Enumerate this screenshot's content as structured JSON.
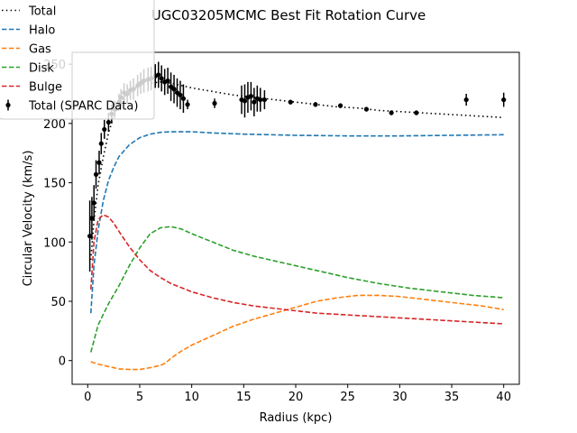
{
  "chart_data": {
    "type": "line",
    "title": "UGC03205MCMC Best Fit Rotation Curve",
    "xlabel": "Radius (kpc)",
    "ylabel": "Circular Velocity (km/s)",
    "xlim": [
      -1.5,
      41.5
    ],
    "ylim": [
      -20,
      260
    ],
    "xticks": [
      0,
      5,
      10,
      15,
      20,
      25,
      30,
      35,
      40
    ],
    "yticks": [
      0,
      50,
      100,
      150,
      200,
      250
    ],
    "grid": false,
    "legend_position": "top-left",
    "series": [
      {
        "name": "Total",
        "style": "dotted",
        "color": "#000000",
        "x": [
          0.3,
          0.6,
          1.0,
          1.5,
          2.0,
          2.5,
          3.0,
          3.5,
          4.0,
          5.0,
          6.0,
          7.0,
          8.0,
          9.0,
          10.0,
          12.0,
          14.0,
          16.0,
          18.0,
          20.0,
          22.0,
          24.0,
          26.0,
          28.0,
          30.0,
          32.0,
          34.0,
          36.0,
          38.0,
          40.0
        ],
        "y": [
          85,
          118,
          148,
          172,
          192,
          206,
          215,
          222,
          227,
          232,
          234,
          235,
          234,
          232,
          230,
          227,
          224,
          222,
          220,
          218,
          216,
          214,
          213,
          211,
          210,
          209,
          208,
          207,
          206,
          205
        ]
      },
      {
        "name": "Halo",
        "style": "dashed",
        "color": "#1f77b4",
        "x": [
          0.3,
          0.6,
          1.0,
          1.5,
          2.0,
          2.5,
          3.0,
          4.0,
          5.0,
          6.0,
          7.0,
          8.0,
          9.0,
          10.0,
          12.0,
          15.0,
          20.0,
          25.0,
          30.0,
          35.0,
          40.0
        ],
        "y": [
          40,
          80,
          110,
          135,
          152,
          163,
          172,
          182,
          188,
          191,
          192.5,
          193,
          193,
          193,
          192,
          191,
          190,
          189.5,
          189.5,
          190,
          190.5
        ]
      },
      {
        "name": "Gas",
        "style": "dashed",
        "color": "#ff7f0e",
        "x": [
          0.3,
          1.0,
          2.0,
          3.0,
          4.0,
          5.0,
          6.0,
          7.0,
          7.5,
          8.0,
          9.0,
          10.0,
          12.0,
          14.0,
          16.0,
          18.0,
          20.0,
          22.0,
          24.0,
          26.0,
          28.0,
          30.0,
          32.0,
          34.0,
          36.0,
          38.0,
          40.0
        ],
        "y": [
          -1,
          -3,
          -5,
          -7,
          -7.5,
          -7.5,
          -6,
          -4,
          -2,
          2,
          8,
          13,
          21,
          29,
          35,
          40,
          45,
          50,
          53,
          55,
          55,
          54,
          52,
          50,
          48,
          46,
          43
        ]
      },
      {
        "name": "Disk",
        "style": "dashed",
        "color": "#2ca02c",
        "x": [
          0.3,
          1.0,
          2.0,
          3.0,
          4.0,
          5.0,
          6.0,
          7.0,
          8.0,
          9.0,
          10.0,
          12.0,
          14.0,
          16.0,
          18.0,
          20.0,
          22.0,
          25.0,
          28.0,
          31.0,
          34.0,
          37.0,
          40.0
        ],
        "y": [
          7,
          30,
          48,
          63,
          80,
          95,
          107,
          112,
          113,
          111,
          107,
          100,
          93,
          88,
          84,
          80,
          76,
          70,
          65,
          61,
          58,
          55,
          53
        ]
      },
      {
        "name": "Bulge",
        "style": "dashed",
        "color": "#d62728",
        "x": [
          0.3,
          0.6,
          1.0,
          1.5,
          2.0,
          2.5,
          3.0,
          4.0,
          5.0,
          6.0,
          7.0,
          8.0,
          10.0,
          12.0,
          14.0,
          16.0,
          18.0,
          20.0,
          22.0,
          24.0,
          26.0,
          28.0,
          30.0,
          32.0,
          34.0,
          36.0,
          38.0,
          40.0
        ],
        "y": [
          60,
          100,
          119,
          123,
          121,
          116,
          109,
          96,
          85,
          76,
          70,
          65,
          58,
          53,
          49,
          46,
          44,
          42,
          40,
          39,
          38,
          37,
          36,
          35,
          34,
          33,
          32,
          31
        ]
      },
      {
        "name": "Total (SPARC Data)",
        "style": "errorbar",
        "color": "#000000",
        "x": [
          0.2,
          0.4,
          0.6,
          0.8,
          1.1,
          1.3,
          1.6,
          2.0,
          2.3,
          2.6,
          3.0,
          3.2,
          3.5,
          3.8,
          4.1,
          4.4,
          4.8,
          5.1,
          5.4,
          5.8,
          6.1,
          6.5,
          6.8,
          7.1,
          7.4,
          7.7,
          8.0,
          8.3,
          8.6,
          8.9,
          9.2,
          9.6,
          12.2,
          14.8,
          15.1,
          15.4,
          15.7,
          16.0,
          16.3,
          16.6,
          17.0,
          19.5,
          21.9,
          24.3,
          26.8,
          29.2,
          31.6,
          36.4,
          40.0
        ],
        "y": [
          105,
          120,
          133,
          157,
          167,
          183,
          195,
          201,
          208,
          212,
          218,
          222,
          226,
          225,
          228,
          229,
          232,
          234,
          236,
          237,
          238,
          240,
          241,
          238,
          235,
          236,
          231,
          229,
          226,
          224,
          221,
          216,
          217,
          220,
          219,
          222,
          223,
          218,
          221,
          220,
          220,
          218,
          216,
          215,
          212,
          209,
          209,
          220,
          220
        ],
        "yerr": [
          30,
          18,
          15,
          12,
          10,
          9,
          8,
          8,
          8,
          7,
          7,
          7,
          8,
          8,
          8,
          9,
          9,
          9,
          10,
          10,
          10,
          10,
          11,
          11,
          11,
          11,
          12,
          12,
          12,
          12,
          12,
          4,
          4,
          12,
          14,
          13,
          12,
          12,
          11,
          10,
          8,
          2,
          2,
          2,
          2,
          2,
          2,
          5,
          6
        ]
      }
    ]
  }
}
